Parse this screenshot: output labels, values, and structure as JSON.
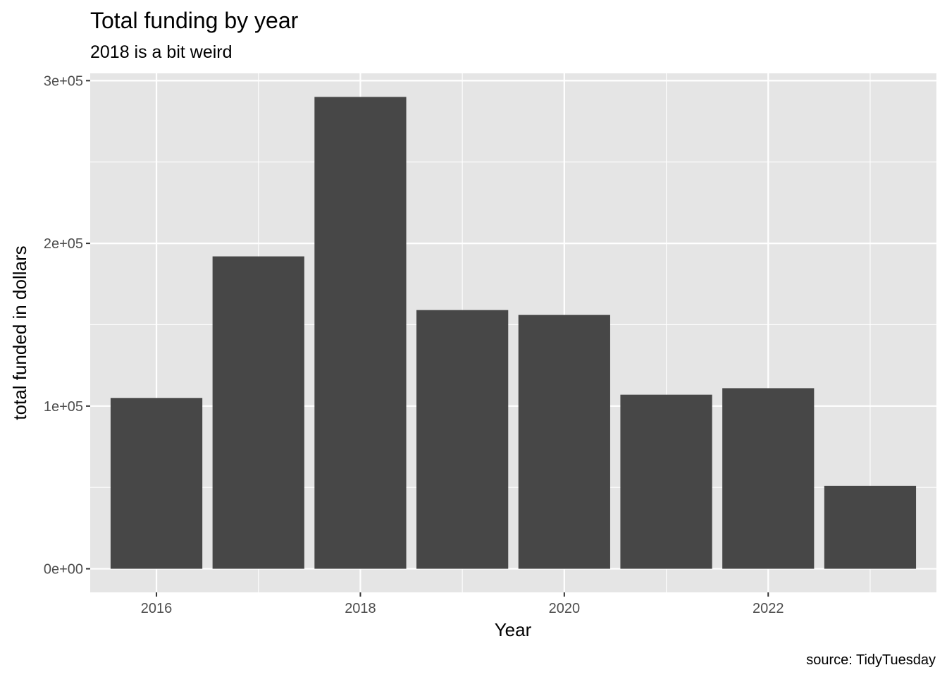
{
  "chart_data": {
    "type": "bar",
    "title": "Total funding by year",
    "subtitle": "2018 is a bit weird",
    "caption": "source: TidyTuesday",
    "xlabel": "Year",
    "ylabel": "total funded in dollars",
    "categories": [
      2016,
      2017,
      2018,
      2019,
      2020,
      2021,
      2022,
      2023
    ],
    "values": [
      105000,
      192000,
      290000,
      159000,
      156000,
      107000,
      111000,
      51000
    ],
    "xlim": [
      2015.35,
      2023.65
    ],
    "ylim": [
      -14500,
      304500
    ],
    "x_ticks": [
      2016,
      2018,
      2020,
      2022
    ],
    "x_tick_labels": [
      "2016",
      "2018",
      "2020",
      "2022"
    ],
    "y_ticks": [
      0,
      100000,
      200000,
      300000
    ],
    "y_tick_labels": [
      "0e+00",
      "1e+05",
      "2e+05",
      "3e+05"
    ],
    "grid": true,
    "colors": {
      "bar": "#474747",
      "panel": "#e5e5e5",
      "grid": "#ffffff",
      "tick_text": "#4d4d4d",
      "tick_mark": "#333333"
    }
  }
}
